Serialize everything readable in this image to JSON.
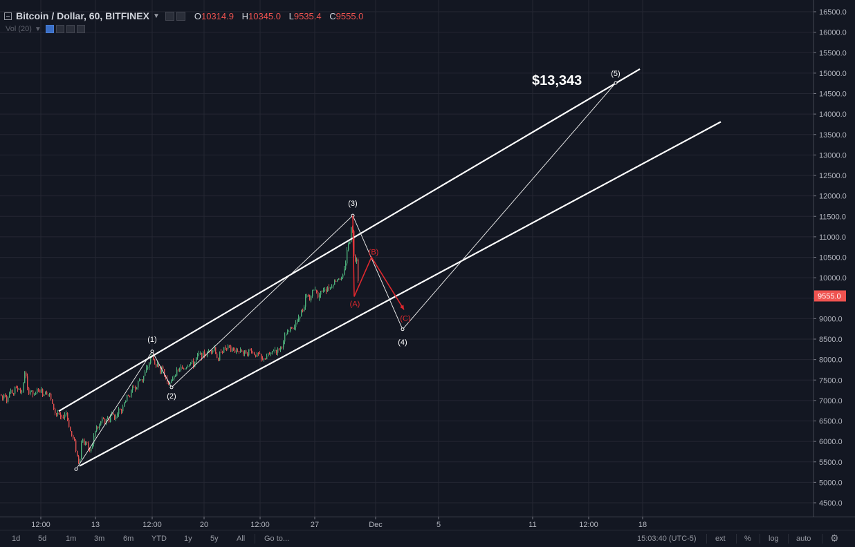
{
  "header": {
    "title": "Bitcoin / Dollar, 60, BITFINEX",
    "ohlc": [
      {
        "k": "O",
        "v": "10314.9"
      },
      {
        "k": "H",
        "v": "10345.0"
      },
      {
        "k": "L",
        "v": "9535.4"
      },
      {
        "k": "C",
        "v": "9555.0"
      }
    ],
    "volume_label": "Vol (20)"
  },
  "toolbar": {
    "ranges": [
      "1d",
      "5d",
      "1m",
      "3m",
      "6m",
      "YTD",
      "1y",
      "5y",
      "All"
    ],
    "goto": "Go to...",
    "clock": "15:03:40 (UTC-5)",
    "right_buttons": [
      "ext",
      "%",
      "log",
      "auto"
    ]
  },
  "chart_data": {
    "type": "candlestick",
    "symbol": "Bitcoin / Dollar",
    "interval": "60",
    "exchange": "BITFINEX",
    "ylim": [
      4200,
      16700
    ],
    "y_ticks": [
      4500,
      5000,
      5500,
      6000,
      6500,
      7000,
      7500,
      8000,
      8500,
      9000,
      9500,
      10000,
      10500,
      11000,
      11500,
      12000,
      12500,
      13000,
      13500,
      14000,
      14500,
      15000,
      15500,
      16000,
      16500
    ],
    "x_tick_labels": [
      "12:00",
      "13",
      "12:00",
      "20",
      "12:00",
      "27",
      "Dec",
      "5",
      "11",
      "12:00",
      "18"
    ],
    "last_price": "9555.0",
    "last_price_value": 9555,
    "price_path": [
      [
        0,
        7150
      ],
      [
        3,
        7050
      ],
      [
        6,
        7200
      ],
      [
        9,
        7000
      ],
      [
        12,
        7150
      ],
      [
        15,
        7250
      ],
      [
        18,
        7100
      ],
      [
        21,
        7350
      ],
      [
        24,
        7250
      ],
      [
        27,
        7300
      ],
      [
        30,
        7150
      ],
      [
        33,
        7400
      ],
      [
        36,
        7850
      ],
      [
        38,
        7300
      ],
      [
        41,
        7200
      ],
      [
        44,
        7250
      ],
      [
        47,
        7150
      ],
      [
        50,
        7100
      ],
      [
        53,
        7300
      ],
      [
        56,
        7200
      ],
      [
        59,
        7250
      ],
      [
        62,
        7100
      ],
      [
        65,
        7250
      ],
      [
        68,
        7150
      ],
      [
        71,
        7150
      ],
      [
        74,
        6950
      ],
      [
        77,
        6800
      ],
      [
        80,
        6650
      ],
      [
        83,
        6700
      ],
      [
        86,
        6600
      ],
      [
        89,
        6550
      ],
      [
        92,
        6650
      ],
      [
        95,
        6700
      ],
      [
        98,
        6450
      ],
      [
        101,
        6250
      ],
      [
        104,
        6100
      ],
      [
        107,
        6000
      ],
      [
        110,
        5700
      ],
      [
        113,
        5500
      ],
      [
        115,
        5600
      ],
      [
        118,
        6150
      ],
      [
        121,
        5900
      ],
      [
        124,
        6050
      ],
      [
        127,
        5800
      ],
      [
        130,
        5750
      ],
      [
        133,
        5950
      ],
      [
        136,
        6200
      ],
      [
        139,
        6350
      ],
      [
        142,
        6300
      ],
      [
        145,
        6500
      ],
      [
        148,
        6550
      ],
      [
        151,
        6450
      ],
      [
        154,
        6600
      ],
      [
        157,
        6500
      ],
      [
        160,
        6700
      ],
      [
        163,
        6650
      ],
      [
        166,
        6550
      ],
      [
        169,
        6700
      ],
      [
        172,
        6800
      ],
      [
        175,
        6750
      ],
      [
        178,
        6950
      ],
      [
        181,
        7000
      ],
      [
        184,
        7150
      ],
      [
        187,
        7100
      ],
      [
        190,
        7300
      ],
      [
        193,
        7350
      ],
      [
        196,
        7250
      ],
      [
        199,
        7450
      ],
      [
        202,
        7550
      ],
      [
        205,
        7500
      ],
      [
        208,
        7650
      ],
      [
        211,
        7750
      ],
      [
        214,
        7850
      ],
      [
        217,
        8050
      ],
      [
        220,
        8150
      ],
      [
        222,
        7900
      ],
      [
        225,
        7800
      ],
      [
        228,
        7950
      ],
      [
        231,
        7700
      ],
      [
        234,
        7850
      ],
      [
        237,
        7600
      ],
      [
        240,
        7500
      ],
      [
        243,
        7450
      ],
      [
        246,
        7400
      ],
      [
        249,
        7550
      ],
      [
        252,
        7650
      ],
      [
        255,
        7700
      ],
      [
        258,
        7750
      ],
      [
        261,
        7800
      ],
      [
        264,
        7750
      ],
      [
        267,
        7800
      ],
      [
        270,
        7850
      ],
      [
        273,
        7900
      ],
      [
        276,
        7950
      ],
      [
        279,
        7850
      ],
      [
        282,
        8000
      ],
      [
        285,
        8100
      ],
      [
        288,
        8150
      ],
      [
        291,
        8100
      ],
      [
        294,
        8150
      ],
      [
        297,
        8100
      ],
      [
        300,
        8200
      ],
      [
        303,
        8250
      ],
      [
        306,
        8200
      ],
      [
        309,
        8300
      ],
      [
        312,
        8100
      ],
      [
        315,
        7950
      ],
      [
        318,
        8250
      ],
      [
        321,
        8200
      ],
      [
        324,
        8300
      ],
      [
        327,
        8250
      ],
      [
        330,
        8350
      ],
      [
        333,
        8200
      ],
      [
        336,
        8300
      ],
      [
        339,
        8150
      ],
      [
        342,
        8250
      ],
      [
        345,
        8200
      ],
      [
        348,
        8250
      ],
      [
        351,
        8150
      ],
      [
        354,
        8200
      ],
      [
        357,
        8150
      ],
      [
        360,
        8250
      ],
      [
        363,
        8200
      ],
      [
        366,
        8150
      ],
      [
        369,
        8100
      ],
      [
        372,
        8150
      ],
      [
        375,
        8100
      ],
      [
        378,
        7950
      ],
      [
        381,
        8050
      ],
      [
        384,
        8000
      ],
      [
        387,
        8150
      ],
      [
        390,
        8100
      ],
      [
        393,
        8200
      ],
      [
        396,
        8250
      ],
      [
        399,
        8200
      ],
      [
        402,
        8250
      ],
      [
        405,
        8300
      ],
      [
        408,
        8350
      ],
      [
        411,
        8550
      ],
      [
        414,
        8650
      ],
      [
        417,
        8700
      ],
      [
        420,
        8800
      ],
      [
        423,
        8750
      ],
      [
        426,
        8900
      ],
      [
        429,
        8950
      ],
      [
        432,
        9050
      ],
      [
        435,
        9200
      ],
      [
        438,
        9150
      ],
      [
        441,
        9500
      ],
      [
        444,
        9600
      ],
      [
        447,
        9450
      ],
      [
        450,
        9650
      ],
      [
        453,
        9700
      ],
      [
        456,
        9750
      ],
      [
        459,
        9500
      ],
      [
        462,
        9700
      ],
      [
        465,
        9650
      ],
      [
        468,
        9750
      ],
      [
        471,
        9700
      ],
      [
        474,
        9800
      ],
      [
        477,
        9750
      ],
      [
        480,
        9850
      ],
      [
        483,
        9900
      ],
      [
        486,
        9950
      ],
      [
        489,
        10000
      ],
      [
        492,
        9950
      ],
      [
        495,
        10050
      ],
      [
        498,
        10250
      ],
      [
        500,
        10500
      ],
      [
        502,
        10900
      ],
      [
        504,
        10700
      ],
      [
        506,
        11100
      ],
      [
        508,
        11450
      ],
      [
        510,
        10800
      ],
      [
        512,
        10300
      ],
      [
        514,
        10600
      ],
      [
        516,
        10350
      ],
      [
        518,
        9555
      ]
    ],
    "channel_lines": [
      {
        "from": [
          85,
          6740
        ],
        "to": [
          925,
          15100
        ]
      },
      {
        "from": [
          115,
          5400
        ],
        "to": [
          1042,
          13810
        ]
      }
    ],
    "waves_main": {
      "points": [
        [
          110,
          5320
        ],
        [
          220,
          8200
        ],
        [
          248,
          7320
        ],
        [
          510,
          11520
        ],
        [
          582,
          8740
        ],
        [
          890,
          14760
        ]
      ],
      "labels": [
        "(1)",
        "(2)",
        "(3)",
        "(4)",
        "(5)"
      ]
    },
    "waves_abc": {
      "points": [
        [
          510,
          11520
        ],
        [
          512,
          9540
        ],
        [
          537,
          10500
        ],
        [
          584,
          9220
        ]
      ],
      "labels": [
        "(A)",
        "(B)",
        "(C)"
      ]
    },
    "annotations": [
      {
        "text": "$13,343"
      }
    ],
    "grid": true
  }
}
